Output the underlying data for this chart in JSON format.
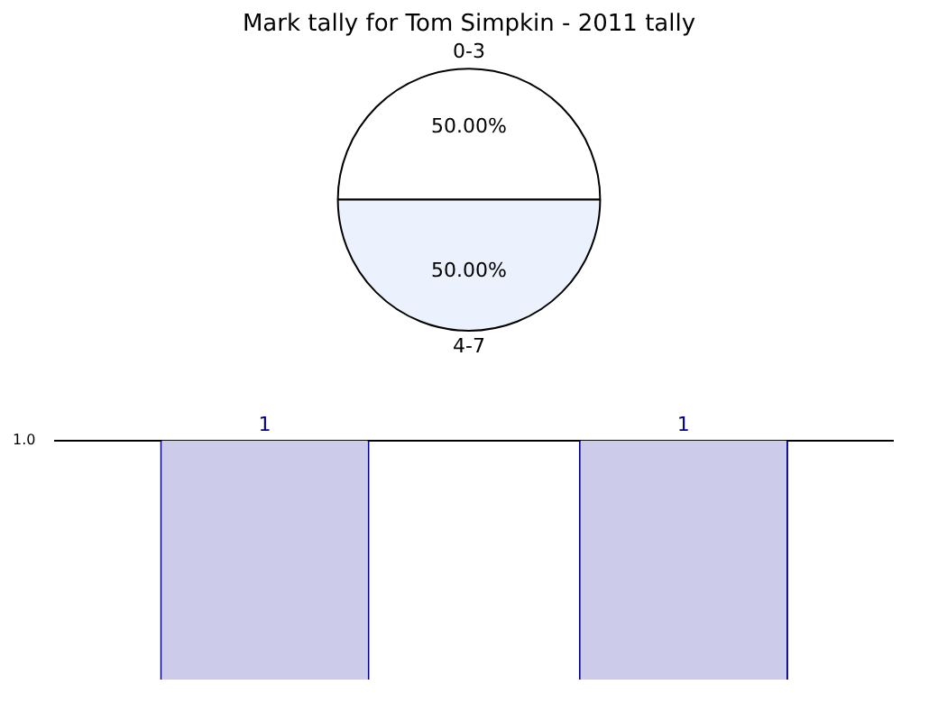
{
  "chart_data": [
    {
      "type": "pie",
      "title": "Mark tally for Tom Simpkin - 2011 tally",
      "categories": [
        "0-3",
        "4-7"
      ],
      "values": [
        50,
        50
      ],
      "colors": [
        "#ffffff",
        "#ebf1fd"
      ],
      "value_labels": [
        "50.00%",
        "50.00%"
      ],
      "legend": false
    },
    {
      "type": "bar",
      "categories": [
        null,
        null
      ],
      "values": [
        1,
        1
      ],
      "color": "#ccccea",
      "ylim": [
        0,
        1
      ],
      "yticks": [
        {
          "value": 1,
          "label": "1.0"
        }
      ],
      "data_labels": true,
      "grid": false,
      "legend": false
    }
  ]
}
